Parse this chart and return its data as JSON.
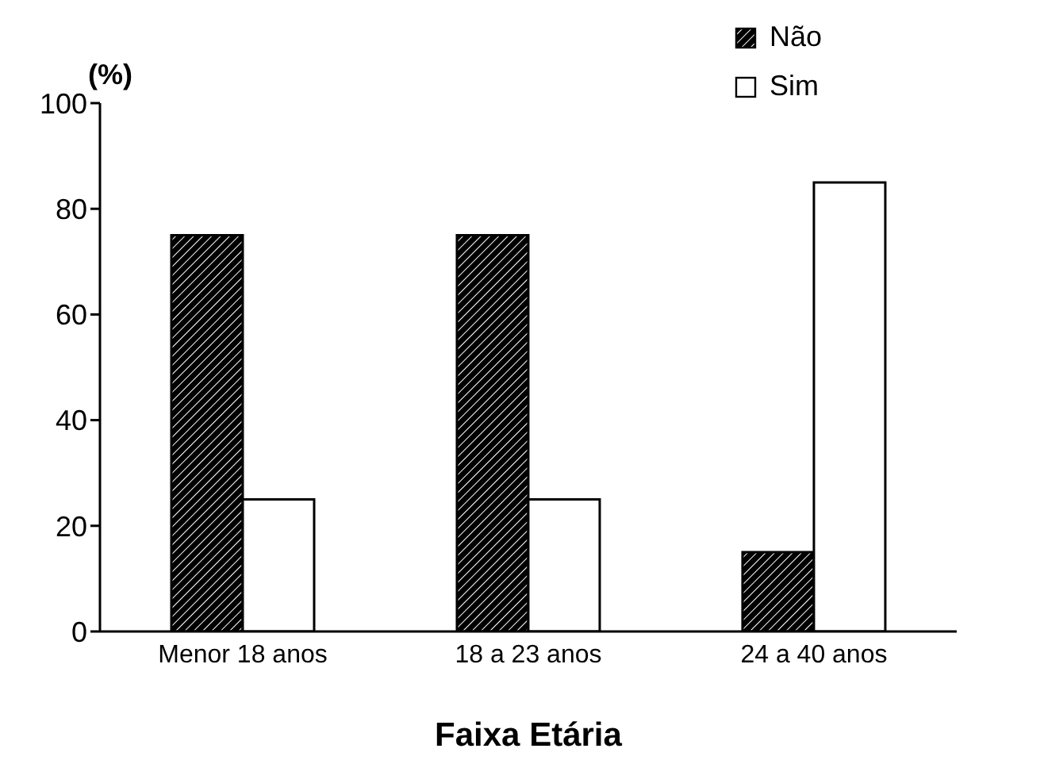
{
  "chart_data": {
    "type": "bar",
    "xlabel": "Faixa Etária",
    "ylabel": "(%)",
    "categories": [
      "Menor 18 anos",
      "18 a 23 anos",
      "24 a 40 anos"
    ],
    "series": [
      {
        "name": "Não",
        "color": "#000000",
        "values": [
          75,
          75,
          15
        ]
      },
      {
        "name": "Sim",
        "color": "#ffffff",
        "values": [
          25,
          25,
          85
        ]
      }
    ],
    "ylim": [
      0,
      100
    ],
    "yticks": [
      0,
      20,
      40,
      60,
      80,
      100
    ],
    "grid": false,
    "legend": "top right"
  }
}
